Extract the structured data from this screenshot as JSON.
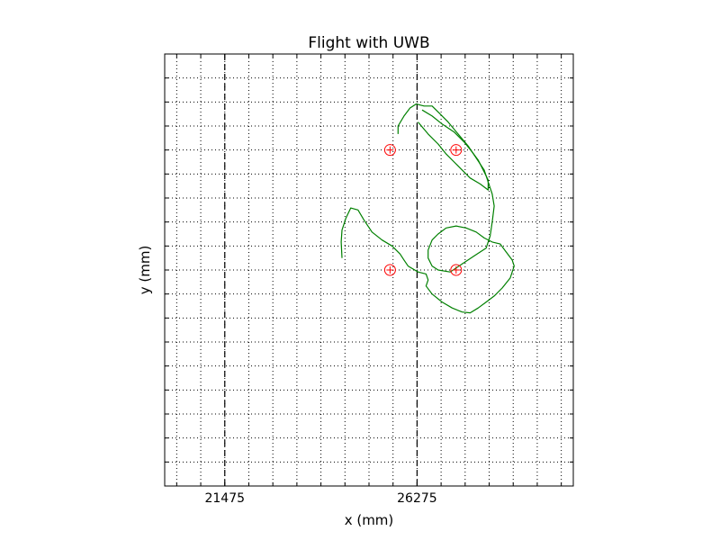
{
  "chart_data": {
    "type": "line",
    "title": "Flight with UWB",
    "xlabel": "x (mm)",
    "ylabel": "y (mm)",
    "xlim": [
      19975,
      30175
    ],
    "ylim": [
      -5400,
      5400
    ],
    "x_ticks": [
      21475,
      26275
    ],
    "grid": true,
    "grid_style": "dotted",
    "colors": {
      "path": "#008000",
      "anchors": "#ff0000",
      "boundary": "#000000"
    },
    "boundaries": [
      {
        "x": 21475
      },
      {
        "x": 26275
      }
    ],
    "anchors": [
      {
        "x": 25600,
        "y": 3000
      },
      {
        "x": 27250,
        "y": 3000
      },
      {
        "x": 25600,
        "y": 0
      },
      {
        "x": 27250,
        "y": 0
      }
    ],
    "series": [
      {
        "points": [
          [
            24400,
            300
          ],
          [
            24380,
            700
          ],
          [
            24400,
            1000
          ],
          [
            24500,
            1300
          ],
          [
            24620,
            1550
          ],
          [
            24800,
            1500
          ],
          [
            24950,
            1250
          ],
          [
            25150,
            950
          ],
          [
            25400,
            750
          ],
          [
            25650,
            600
          ],
          [
            25850,
            400
          ],
          [
            25950,
            250
          ],
          [
            26050,
            100
          ],
          [
            26300,
            -50
          ],
          [
            26500,
            -100
          ],
          [
            26550,
            -250
          ],
          [
            26500,
            -400
          ],
          [
            26650,
            -600
          ],
          [
            26900,
            -800
          ],
          [
            27150,
            -950
          ],
          [
            27400,
            -1050
          ],
          [
            27600,
            -1070
          ],
          [
            27800,
            -950
          ],
          [
            28000,
            -800
          ],
          [
            28200,
            -650
          ],
          [
            28400,
            -450
          ],
          [
            28600,
            -200
          ],
          [
            28700,
            100
          ],
          [
            28650,
            250
          ],
          [
            28500,
            450
          ],
          [
            28350,
            650
          ],
          [
            28150,
            700
          ],
          [
            27950,
            800
          ],
          [
            27750,
            950
          ],
          [
            27500,
            1050
          ],
          [
            27250,
            1100
          ],
          [
            27000,
            1050
          ],
          [
            26800,
            900
          ],
          [
            26650,
            750
          ],
          [
            26550,
            500
          ],
          [
            26550,
            300
          ],
          [
            26650,
            100
          ],
          [
            26800,
            0
          ],
          [
            27100,
            -50
          ],
          [
            27400,
            150
          ],
          [
            27700,
            350
          ],
          [
            28000,
            550
          ],
          [
            28100,
            850
          ],
          [
            28150,
            1200
          ],
          [
            28200,
            1600
          ],
          [
            28150,
            1900
          ],
          [
            28050,
            2200
          ],
          [
            27950,
            2500
          ],
          [
            27750,
            2800
          ],
          [
            27550,
            3100
          ],
          [
            27300,
            3400
          ],
          [
            27050,
            3700
          ],
          [
            26800,
            3950
          ],
          [
            26650,
            4100
          ],
          [
            26450,
            4100
          ],
          [
            26250,
            4150
          ],
          [
            26100,
            4050
          ],
          [
            25950,
            3850
          ],
          [
            25800,
            3600
          ],
          [
            25800,
            3400
          ]
        ]
      },
      {
        "points": [
          [
            26400,
            4000
          ],
          [
            26650,
            3850
          ],
          [
            26900,
            3650
          ],
          [
            27200,
            3450
          ],
          [
            27450,
            3200
          ],
          [
            27650,
            2950
          ],
          [
            27800,
            2750
          ],
          [
            27950,
            2450
          ],
          [
            28050,
            2250
          ],
          [
            28050,
            2000
          ],
          [
            27850,
            2150
          ],
          [
            27600,
            2300
          ],
          [
            27400,
            2500
          ],
          [
            27200,
            2700
          ],
          [
            27000,
            2900
          ],
          [
            26800,
            3150
          ],
          [
            26550,
            3400
          ],
          [
            26300,
            3700
          ]
        ]
      }
    ]
  }
}
